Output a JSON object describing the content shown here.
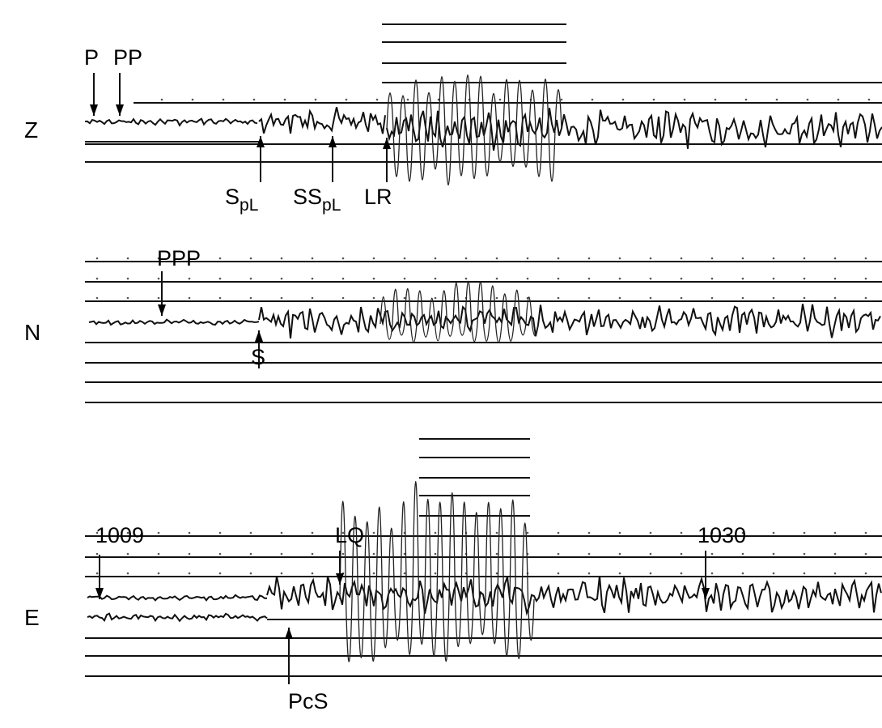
{
  "traces": [
    {
      "component": "Z",
      "phases": [
        {
          "label": "P"
        },
        {
          "label": "PP"
        },
        {
          "label": "S",
          "sub": "pL"
        },
        {
          "label": "SS",
          "sub": "pL"
        },
        {
          "label": "LR"
        }
      ]
    },
    {
      "component": "N",
      "phases": [
        {
          "label": "PPP"
        },
        {
          "label": "S"
        }
      ]
    },
    {
      "component": "E",
      "phases": [
        {
          "label": "1009"
        },
        {
          "label": "LQ"
        },
        {
          "label": "1030"
        },
        {
          "label": "PcS"
        }
      ]
    }
  ]
}
